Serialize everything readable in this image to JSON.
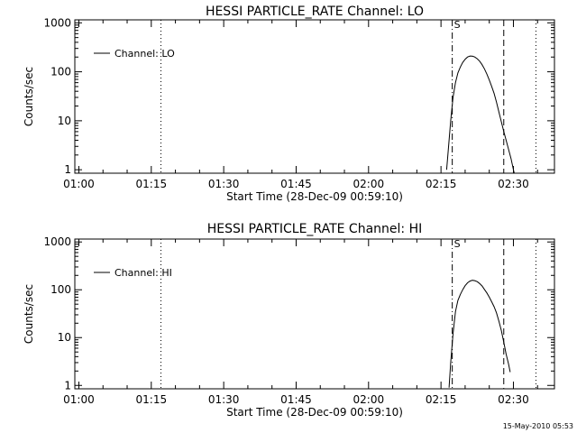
{
  "footer": "15-May-2010 05:53",
  "chart_data": [
    {
      "type": "line",
      "title": "HESSI PARTICLE_RATE Channel: LO",
      "xlabel": "Start Time (28-Dec-09 00:59:10)",
      "ylabel": "Counts/sec",
      "y_scale": "log",
      "xlim": [
        "00:59:10",
        "02:38:30"
      ],
      "ylim": [
        0.85,
        1150
      ],
      "x_ticks": [
        "01:00",
        "01:15",
        "01:30",
        "01:45",
        "02:00",
        "02:15",
        "02:30"
      ],
      "y_ticks": [
        "1",
        "10",
        "100",
        "1000"
      ],
      "legend": {
        "label": "Channel: LO",
        "position": "top-left"
      },
      "series": [
        {
          "name": "Channel: LO",
          "x": [
            "02:16:10",
            "02:16:30",
            "02:17:00",
            "02:17:30",
            "02:18:00",
            "02:18:30",
            "02:19:00",
            "02:19:30",
            "02:20:00",
            "02:20:30",
            "02:21:00",
            "02:21:30",
            "02:22:00",
            "02:22:30",
            "02:23:00",
            "02:23:30",
            "02:24:00",
            "02:24:30",
            "02:25:00",
            "02:25:30",
            "02:26:00",
            "02:26:30",
            "02:27:00",
            "02:27:30",
            "02:28:00",
            "02:28:30",
            "02:29:00",
            "02:29:30",
            "02:30:00",
            "02:30:10"
          ],
          "values": [
            1,
            2.5,
            10,
            30,
            60,
            95,
            125,
            155,
            180,
            200,
            210,
            208,
            200,
            185,
            165,
            140,
            115,
            90,
            68,
            50,
            36,
            24,
            15,
            9.5,
            6,
            4,
            2.6,
            1.7,
            1,
            0.85
          ]
        }
      ],
      "annotations": [
        {
          "x": "01:17:00",
          "style": "dotted"
        },
        {
          "x": "02:17:20",
          "style": "dash-dot",
          "label": "S"
        },
        {
          "x": "02:28:00",
          "style": "dashed"
        },
        {
          "x": "02:34:40",
          "style": "dotted"
        }
      ]
    },
    {
      "type": "line",
      "title": "HESSI PARTICLE_RATE Channel: HI",
      "xlabel": "Start Time (28-Dec-09 00:59:10)",
      "ylabel": "Counts/sec",
      "y_scale": "log",
      "xlim": [
        "00:59:10",
        "02:38:30"
      ],
      "ylim": [
        0.85,
        1150
      ],
      "x_ticks": [
        "01:00",
        "01:15",
        "01:30",
        "01:45",
        "02:00",
        "02:15",
        "02:30"
      ],
      "y_ticks": [
        "1",
        "10",
        "100",
        "1000"
      ],
      "legend": {
        "label": "Channel: HI",
        "position": "top-left"
      },
      "series": [
        {
          "name": "Channel: HI",
          "x": [
            "02:16:40",
            "02:17:00",
            "02:17:30",
            "02:18:00",
            "02:18:30",
            "02:19:00",
            "02:19:30",
            "02:20:00",
            "02:20:30",
            "02:21:00",
            "02:21:30",
            "02:22:00",
            "02:22:30",
            "02:23:00",
            "02:23:30",
            "02:24:00",
            "02:24:30",
            "02:25:00",
            "02:25:30",
            "02:26:00",
            "02:26:30",
            "02:27:00",
            "02:27:30",
            "02:28:00",
            "02:28:30",
            "02:29:00",
            "02:29:20"
          ],
          "values": [
            0.9,
            3,
            12,
            35,
            60,
            80,
            100,
            122,
            140,
            152,
            158,
            155,
            148,
            135,
            120,
            102,
            86,
            70,
            56,
            44,
            33,
            22,
            14,
            8,
            4.5,
            2.8,
            1.9
          ]
        }
      ],
      "annotations": [
        {
          "x": "01:17:00",
          "style": "dotted"
        },
        {
          "x": "02:17:20",
          "style": "dash-dot",
          "label": "S"
        },
        {
          "x": "02:28:00",
          "style": "dashed"
        },
        {
          "x": "02:34:40",
          "style": "dotted"
        }
      ]
    }
  ]
}
